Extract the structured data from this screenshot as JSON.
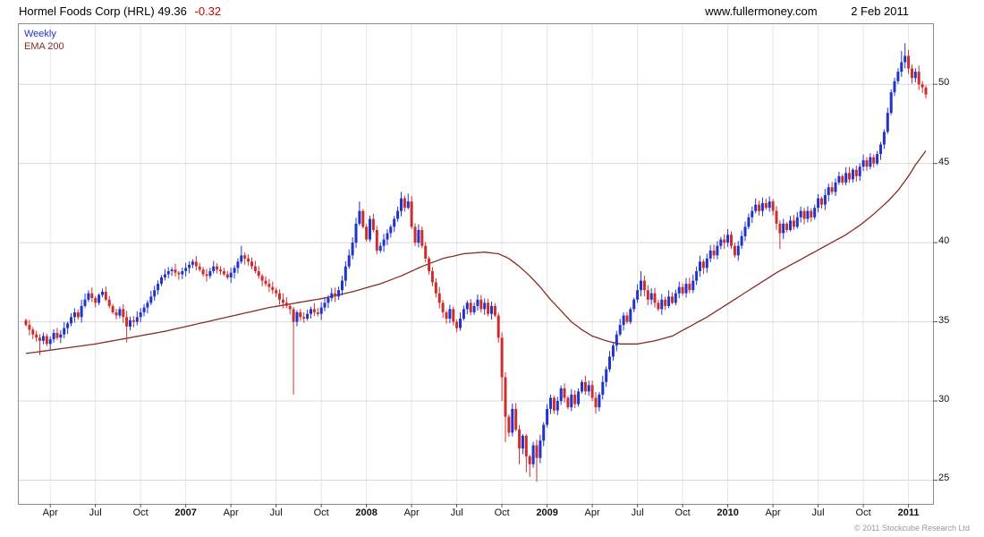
{
  "header": {
    "title": "Hormel Foods Corp (HRL) 49.36",
    "change": "-0.32",
    "site": "www.fullermoney.com",
    "date": "2 Feb 2011"
  },
  "legend": {
    "series": "Weekly",
    "overlay": "EMA 200"
  },
  "footer": {
    "copyright": "© 2011 Stockcube Research Ltd"
  },
  "chart_data": {
    "type": "candlestick",
    "instrument": "Hormel Foods Corp (HRL)",
    "timeframe": "Weekly",
    "overlay": "EMA 200",
    "last_price": 49.36,
    "change": -0.32,
    "ylim": [
      23.5,
      53.8
    ],
    "yticks": [
      25,
      30,
      35,
      40,
      45,
      50
    ],
    "weeks": 260,
    "x_labels": [
      {
        "label": "Apr",
        "week": 7,
        "bold": false
      },
      {
        "label": "Jul",
        "week": 20,
        "bold": false
      },
      {
        "label": "Oct",
        "week": 33,
        "bold": false
      },
      {
        "label": "2007",
        "week": 46,
        "bold": true
      },
      {
        "label": "Apr",
        "week": 59,
        "bold": false
      },
      {
        "label": "Jul",
        "week": 72,
        "bold": false
      },
      {
        "label": "Oct",
        "week": 85,
        "bold": false
      },
      {
        "label": "2008",
        "week": 98,
        "bold": true
      },
      {
        "label": "Apr",
        "week": 111,
        "bold": false
      },
      {
        "label": "Jul",
        "week": 124,
        "bold": false
      },
      {
        "label": "Oct",
        "week": 137,
        "bold": false
      },
      {
        "label": "2009",
        "week": 150,
        "bold": true
      },
      {
        "label": "Apr",
        "week": 163,
        "bold": false
      },
      {
        "label": "Jul",
        "week": 176,
        "bold": false
      },
      {
        "label": "Oct",
        "week": 189,
        "bold": false
      },
      {
        "label": "2010",
        "week": 202,
        "bold": true
      },
      {
        "label": "Apr",
        "week": 215,
        "bold": false
      },
      {
        "label": "Jul",
        "week": 228,
        "bold": false
      },
      {
        "label": "Oct",
        "week": 241,
        "bold": false
      },
      {
        "label": "2011",
        "week": 254,
        "bold": true
      }
    ],
    "closes": [
      34.8,
      34.5,
      34.2,
      34.0,
      33.8,
      34.1,
      33.6,
      33.9,
      34.3,
      34.0,
      34.2,
      34.6,
      34.9,
      35.3,
      35.6,
      35.3,
      36.0,
      36.4,
      36.8,
      36.5,
      36.2,
      36.7,
      36.9,
      36.4,
      36.0,
      35.6,
      35.4,
      35.8,
      35.3,
      34.7,
      35.1,
      35.0,
      35.3,
      35.6,
      35.9,
      36.2,
      36.6,
      37.0,
      37.4,
      37.8,
      38.0,
      38.2,
      38.3,
      38.1,
      38.0,
      38.2,
      38.4,
      38.6,
      38.8,
      38.5,
      38.3,
      38.0,
      37.9,
      38.2,
      38.5,
      38.3,
      38.2,
      38.0,
      37.8,
      38.1,
      38.4,
      38.8,
      39.2,
      39.0,
      38.8,
      38.5,
      38.2,
      37.9,
      37.6,
      37.4,
      37.2,
      37.0,
      36.8,
      36.4,
      36.2,
      36.0,
      35.8,
      35.0,
      35.6,
      35.3,
      35.2,
      35.5,
      35.8,
      35.6,
      35.5,
      35.9,
      36.2,
      36.5,
      36.8,
      36.6,
      37.0,
      37.6,
      38.5,
      39.2,
      40.0,
      41.2,
      42.0,
      41.0,
      40.2,
      41.5,
      40.8,
      39.5,
      39.8,
      40.2,
      40.6,
      41.0,
      41.5,
      42.0,
      42.8,
      42.2,
      42.6,
      41.0,
      40.0,
      40.8,
      39.8,
      39.0,
      38.2,
      37.5,
      36.8,
      36.2,
      35.6,
      35.2,
      35.8,
      35.0,
      34.6,
      35.2,
      35.8,
      36.2,
      35.6,
      36.0,
      36.4,
      35.8,
      36.2,
      35.5,
      36.0,
      35.4,
      34.0,
      31.5,
      29.0,
      28.0,
      29.5,
      28.2,
      27.0,
      27.8,
      26.5,
      26.0,
      27.2,
      26.4,
      27.5,
      28.5,
      29.5,
      30.2,
      29.4,
      30.0,
      30.8,
      30.2,
      29.6,
      30.4,
      29.8,
      30.6,
      31.2,
      30.6,
      31.0,
      30.2,
      29.6,
      30.4,
      31.2,
      32.0,
      32.8,
      33.5,
      34.2,
      34.8,
      35.4,
      35.0,
      35.8,
      36.4,
      37.0,
      37.6,
      37.0,
      36.4,
      36.8,
      36.2,
      35.8,
      36.4,
      36.0,
      36.6,
      36.2,
      36.8,
      37.2,
      36.8,
      37.4,
      37.0,
      37.6,
      38.2,
      38.8,
      38.4,
      39.0,
      39.5,
      39.2,
      39.8,
      40.2,
      40.0,
      40.5,
      39.8,
      39.2,
      39.8,
      40.4,
      41.0,
      41.6,
      42.0,
      42.4,
      42.0,
      42.5,
      42.2,
      42.6,
      42.0,
      41.2,
      40.6,
      41.2,
      40.8,
      41.4,
      41.0,
      41.6,
      42.0,
      41.5,
      42.0,
      41.6,
      42.2,
      42.8,
      42.4,
      43.0,
      43.5,
      43.2,
      43.8,
      44.2,
      43.8,
      44.4,
      44.0,
      44.6,
      44.2,
      44.8,
      45.2,
      44.8,
      45.4,
      45.0,
      45.6,
      46.2,
      47.0,
      48.2,
      49.5,
      50.2,
      50.8,
      51.4,
      51.8,
      51.0,
      50.4,
      50.8,
      50.0,
      49.8,
      49.36
    ],
    "low_overrides": {
      "4": 32.9,
      "29": 33.7,
      "77": 30.4,
      "137": 30.0,
      "138": 27.4,
      "142": 26.0,
      "144": 25.5,
      "145": 25.2,
      "147": 24.9,
      "164": 29.2,
      "217": 39.6
    },
    "high_overrides": {
      "62": 39.8,
      "96": 42.6,
      "108": 43.2,
      "110": 43.1,
      "177": 38.2,
      "210": 42.8,
      "252": 52.1,
      "253": 52.6
    },
    "ema_anchors": [
      [
        0,
        33.0
      ],
      [
        10,
        33.3
      ],
      [
        20,
        33.6
      ],
      [
        30,
        34.0
      ],
      [
        40,
        34.4
      ],
      [
        50,
        34.9
      ],
      [
        60,
        35.4
      ],
      [
        70,
        35.9
      ],
      [
        78,
        36.2
      ],
      [
        86,
        36.5
      ],
      [
        94,
        36.9
      ],
      [
        102,
        37.4
      ],
      [
        108,
        37.9
      ],
      [
        114,
        38.5
      ],
      [
        120,
        39.0
      ],
      [
        126,
        39.3
      ],
      [
        132,
        39.4
      ],
      [
        136,
        39.3
      ],
      [
        139,
        39.0
      ],
      [
        142,
        38.5
      ],
      [
        145,
        37.9
      ],
      [
        148,
        37.2
      ],
      [
        151,
        36.4
      ],
      [
        154,
        35.7
      ],
      [
        157,
        35.0
      ],
      [
        160,
        34.5
      ],
      [
        163,
        34.1
      ],
      [
        167,
        33.8
      ],
      [
        171,
        33.6
      ],
      [
        176,
        33.6
      ],
      [
        181,
        33.8
      ],
      [
        186,
        34.1
      ],
      [
        191,
        34.7
      ],
      [
        196,
        35.3
      ],
      [
        201,
        36.0
      ],
      [
        206,
        36.7
      ],
      [
        211,
        37.4
      ],
      [
        216,
        38.1
      ],
      [
        221,
        38.7
      ],
      [
        226,
        39.3
      ],
      [
        231,
        39.9
      ],
      [
        236,
        40.5
      ],
      [
        240,
        41.1
      ],
      [
        244,
        41.8
      ],
      [
        248,
        42.6
      ],
      [
        251,
        43.3
      ],
      [
        254,
        44.2
      ],
      [
        256,
        44.9
      ],
      [
        258,
        45.5
      ],
      [
        259,
        45.8
      ]
    ],
    "colors": {
      "up": "#2233cc",
      "down": "#cc2e2e",
      "ema": "#8a2b22",
      "change_negative": "#cc0000",
      "grid_h": "#d8d8d8",
      "grid_v": "#e6e6e6",
      "border": "#8c8c8c",
      "tick": "#555555"
    }
  }
}
